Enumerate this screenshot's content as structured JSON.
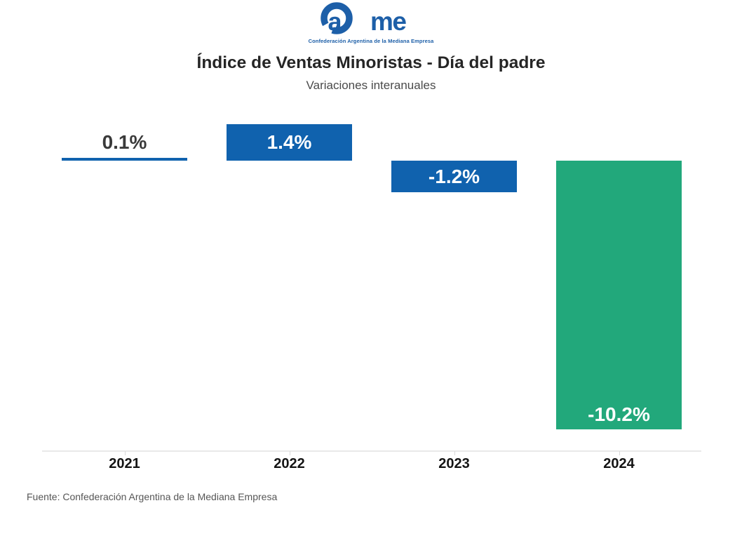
{
  "logo": {
    "brand": "Came",
    "tagline": "Confederación Argentina de la Mediana Empresa",
    "color": "#1d5fa8"
  },
  "header": {
    "title": "Índice de Ventas Minoristas - Día del padre",
    "subtitle": "Variaciones interanuales"
  },
  "chart_data": {
    "type": "bar",
    "title": "Índice de Ventas Minoristas - Día del padre",
    "subtitle": "Variaciones interanuales",
    "categories": [
      "2021",
      "2022",
      "2023",
      "2024"
    ],
    "values": [
      0.1,
      1.4,
      -1.2,
      -10.2
    ],
    "value_labels": [
      "0.1%",
      "1.4%",
      "-1.2%",
      "-10.2%"
    ],
    "bar_colors": [
      "#1062ae",
      "#1062ae",
      "#1062ae",
      "#22a87b"
    ],
    "xlabel": "",
    "ylabel": "",
    "ylim": [
      -11,
      2
    ],
    "baseline": 0,
    "grid": false,
    "legend": false,
    "label_inside_color": "#ffffff",
    "label_outside_color": "#3a3a3a",
    "axis_line_color": "#e9e9e9",
    "tick_color": "#d9d9d9"
  },
  "footer": {
    "source": "Fuente: Confederación Argentina de la Mediana Empresa"
  }
}
